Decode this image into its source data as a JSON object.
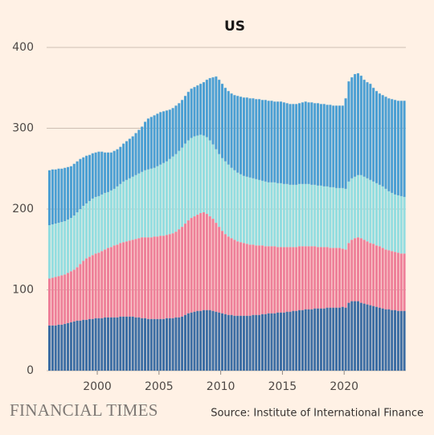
{
  "chart_data": {
    "type": "stacked_bar",
    "title": "US",
    "source": "Source: Institute of International Finance",
    "brand": "FINANCIAL TIMES",
    "x": [
      1996,
      1996.25,
      1996.5,
      1996.75,
      1997,
      1997.25,
      1997.5,
      1997.75,
      1998,
      1998.25,
      1998.5,
      1998.75,
      1999,
      1999.25,
      1999.5,
      1999.75,
      2000,
      2000.25,
      2000.5,
      2000.75,
      2001,
      2001.25,
      2001.5,
      2001.75,
      2002,
      2002.25,
      2002.5,
      2002.75,
      2003,
      2003.25,
      2003.5,
      2003.75,
      2004,
      2004.25,
      2004.5,
      2004.75,
      2005,
      2005.25,
      2005.5,
      2005.75,
      2006,
      2006.25,
      2006.5,
      2006.75,
      2007,
      2007.25,
      2007.5,
      2007.75,
      2008,
      2008.25,
      2008.5,
      2008.75,
      2009,
      2009.25,
      2009.5,
      2009.75,
      2010,
      2010.25,
      2010.5,
      2010.75,
      2011,
      2011.25,
      2011.5,
      2011.75,
      2012,
      2012.25,
      2012.5,
      2012.75,
      2013,
      2013.25,
      2013.5,
      2013.75,
      2014,
      2014.25,
      2014.5,
      2014.75,
      2015,
      2015.25,
      2015.5,
      2015.75,
      2016,
      2016.25,
      2016.5,
      2016.75,
      2017,
      2017.25,
      2017.5,
      2017.75,
      2018,
      2018.25,
      2018.5,
      2018.75,
      2019,
      2019.25,
      2019.5,
      2019.75,
      2020,
      2020.25,
      2020.5,
      2020.75,
      2021,
      2021.25,
      2021.5,
      2021.75,
      2022,
      2022.25,
      2022.5,
      2022.75,
      2023,
      2023.25,
      2023.5,
      2023.75,
      2024,
      2024.25,
      2024.5,
      2024.75
    ],
    "xlim": [
      1996,
      2025
    ],
    "xticks": [
      2000,
      2005,
      2010,
      2015,
      2020
    ],
    "ylim": [
      0,
      400
    ],
    "yticks": [
      0,
      100,
      200,
      300,
      400
    ],
    "grid": true,
    "series": [
      {
        "color": "#3c6da3",
        "values": [
          56,
          56,
          56,
          57,
          57,
          58,
          59,
          60,
          61,
          62,
          62,
          63,
          63,
          64,
          64,
          65,
          65,
          65,
          66,
          66,
          66,
          66,
          66,
          67,
          67,
          67,
          67,
          67,
          66,
          66,
          65,
          65,
          64,
          64,
          64,
          64,
          64,
          64,
          65,
          65,
          65,
          66,
          66,
          67,
          69,
          71,
          72,
          73,
          74,
          74,
          75,
          75,
          75,
          74,
          73,
          72,
          71,
          70,
          69,
          69,
          68,
          68,
          68,
          68,
          68,
          68,
          69,
          69,
          69,
          70,
          70,
          71,
          71,
          71,
          72,
          72,
          72,
          73,
          73,
          74,
          74,
          75,
          75,
          76,
          76,
          76,
          77,
          77,
          77,
          77,
          78,
          78,
          78,
          78,
          78,
          79,
          78,
          84,
          86,
          86,
          86,
          84,
          83,
          82,
          81,
          80,
          79,
          78,
          77,
          76,
          76,
          75,
          75,
          74,
          74,
          74
        ]
      },
      {
        "color": "#ee8099",
        "values": [
          58,
          59,
          60,
          60,
          61,
          61,
          62,
          63,
          64,
          66,
          70,
          73,
          76,
          77,
          79,
          80,
          81,
          83,
          84,
          86,
          87,
          89,
          90,
          91,
          92,
          93,
          94,
          95,
          97,
          98,
          100,
          100,
          101,
          101,
          102,
          102,
          103,
          103,
          103,
          104,
          105,
          106,
          109,
          111,
          113,
          115,
          117,
          118,
          119,
          121,
          121,
          119,
          116,
          114,
          110,
          106,
          102,
          99,
          97,
          95,
          94,
          92,
          91,
          90,
          89,
          88,
          87,
          86,
          86,
          85,
          84,
          83,
          83,
          83,
          81,
          81,
          81,
          80,
          80,
          79,
          79,
          79,
          79,
          78,
          78,
          78,
          77,
          76,
          76,
          76,
          75,
          74,
          74,
          74,
          74,
          72,
          72,
          74,
          76,
          78,
          79,
          80,
          79,
          78,
          77,
          77,
          76,
          76,
          75,
          74,
          73,
          73,
          72,
          72,
          71,
          71
        ]
      },
      {
        "color": "#93dde0",
        "values": [
          66,
          66,
          66,
          66,
          66,
          66,
          66,
          66,
          67,
          68,
          68,
          68,
          68,
          69,
          70,
          70,
          70,
          70,
          70,
          69,
          70,
          70,
          72,
          73,
          75,
          76,
          77,
          78,
          79,
          80,
          81,
          83,
          84,
          85,
          85,
          87,
          88,
          90,
          91,
          93,
          95,
          96,
          97,
          98,
          99,
          99,
          99,
          99,
          98,
          97,
          95,
          95,
          94,
          92,
          91,
          90,
          90,
          90,
          89,
          87,
          86,
          85,
          84,
          83,
          83,
          83,
          82,
          82,
          81,
          80,
          80,
          79,
          79,
          79,
          79,
          79,
          78,
          78,
          77,
          77,
          77,
          77,
          77,
          77,
          77,
          76,
          76,
          76,
          76,
          75,
          75,
          75,
          75,
          74,
          74,
          75,
          75,
          76,
          76,
          76,
          77,
          78,
          78,
          78,
          78,
          77,
          77,
          76,
          76,
          75,
          73,
          72,
          71,
          71,
          71,
          70
        ]
      },
      {
        "color": "#4b9fd3",
        "values": [
          68,
          68,
          67,
          67,
          66,
          66,
          65,
          64,
          64,
          63,
          62,
          60,
          59,
          57,
          56,
          55,
          55,
          53,
          50,
          49,
          47,
          47,
          46,
          46,
          47,
          48,
          49,
          50,
          52,
          54,
          56,
          60,
          63,
          64,
          65,
          65,
          65,
          64,
          63,
          61,
          60,
          60,
          59,
          59,
          59,
          60,
          61,
          61,
          62,
          63,
          66,
          71,
          77,
          83,
          90,
          92,
          92,
          91,
          91,
          92,
          93,
          95,
          96,
          97,
          98,
          98,
          99,
          99,
          100,
          100,
          101,
          101,
          101,
          100,
          101,
          101,
          101,
          100,
          100,
          100,
          100,
          100,
          101,
          102,
          101,
          102,
          101,
          102,
          101,
          102,
          101,
          102,
          101,
          102,
          102,
          102,
          112,
          124,
          125,
          127,
          126,
          123,
          120,
          119,
          119,
          116,
          114,
          113,
          113,
          114,
          115,
          116,
          117,
          117,
          118,
          119
        ]
      }
    ]
  }
}
